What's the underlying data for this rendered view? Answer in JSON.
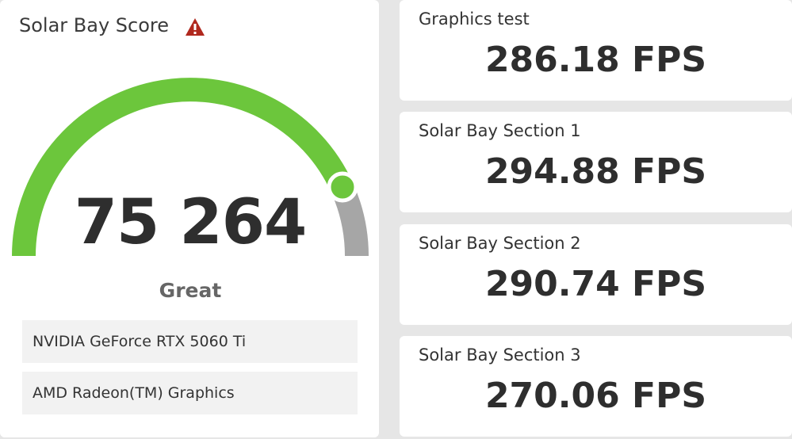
{
  "panel": {
    "title": "Solar Bay Score",
    "score": "75 264",
    "rating": "Great",
    "devices": [
      "NVIDIA GeForce RTX 5060 Ti",
      "AMD Radeon(TM) Graphics"
    ]
  },
  "results": [
    {
      "label": "Graphics test",
      "value": "286.18 FPS"
    },
    {
      "label": "Solar Bay Section 1",
      "value": "294.88 FPS"
    },
    {
      "label": "Solar Bay Section 2",
      "value": "290.74 FPS"
    },
    {
      "label": "Solar Bay Section 3",
      "value": "270.06 FPS"
    }
  ]
}
